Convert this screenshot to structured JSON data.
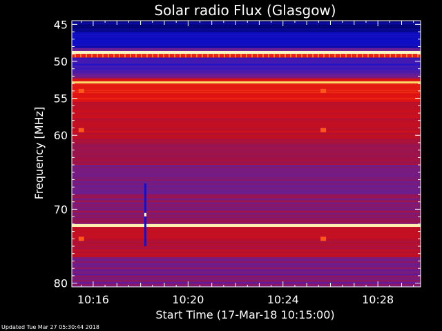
{
  "footer": {
    "updated": "Updated Tue Mar 27 05:30:44 2018"
  },
  "chart_data": {
    "type": "heatmap",
    "title": "Solar radio Flux (Glasgow)",
    "xlabel": "Start Time (17-Mar-18 10:15:00)",
    "ylabel": "Frequency [MHz]",
    "x_ticks": [
      {
        "minutes": 16,
        "label": "10:16"
      },
      {
        "minutes": 20,
        "label": "10:20"
      },
      {
        "minutes": 24,
        "label": "10:24"
      },
      {
        "minutes": 28,
        "label": "10:28"
      }
    ],
    "y_ticks": [
      45,
      50,
      55,
      60,
      70,
      80
    ],
    "xlim_minutes": [
      15.1,
      29.8
    ],
    "ylim_mhz": [
      44.5,
      80.5
    ],
    "colormap": [
      "#000060",
      "#1010d0",
      "#6020a0",
      "#b01030",
      "#e01010",
      "#ff6020",
      "#ffd050",
      "#ffffe0"
    ],
    "bands": [
      {
        "from": 44.5,
        "to": 46.0,
        "level": 0.05
      },
      {
        "from": 46.0,
        "to": 48.2,
        "level": 0.12
      },
      {
        "from": 48.2,
        "to": 48.6,
        "level": 0.3
      },
      {
        "from": 48.6,
        "to": 49.0,
        "level": 0.97
      },
      {
        "from": 49.0,
        "to": 49.5,
        "level": 0.6
      },
      {
        "from": 49.5,
        "to": 51.5,
        "level": 0.22
      },
      {
        "from": 51.5,
        "to": 52.3,
        "level": 0.3
      },
      {
        "from": 52.3,
        "to": 52.7,
        "level": 0.55
      },
      {
        "from": 52.7,
        "to": 53.0,
        "level": 0.88
      },
      {
        "from": 53.0,
        "to": 55.5,
        "level": 0.58
      },
      {
        "from": 55.5,
        "to": 60.5,
        "level": 0.48
      },
      {
        "from": 60.5,
        "to": 64.0,
        "level": 0.4
      },
      {
        "from": 64.0,
        "to": 68.0,
        "level": 0.32
      },
      {
        "from": 68.0,
        "to": 71.0,
        "level": 0.36
      },
      {
        "from": 71.0,
        "to": 72.0,
        "level": 0.38
      },
      {
        "from": 72.0,
        "to": 72.4,
        "level": 0.95
      },
      {
        "from": 72.4,
        "to": 76.5,
        "level": 0.46
      },
      {
        "from": 76.5,
        "to": 80.5,
        "level": 0.33
      }
    ],
    "burst": {
      "minutes": 18.2,
      "freq_from": 66.5,
      "freq_to": 75.0
    },
    "spots": [
      {
        "minutes": 15.5,
        "mhz": 54.0
      },
      {
        "minutes": 25.7,
        "mhz": 54.0
      },
      {
        "minutes": 15.5,
        "mhz": 59.3
      },
      {
        "minutes": 25.7,
        "mhz": 59.3
      },
      {
        "minutes": 15.5,
        "mhz": 74.0
      },
      {
        "minutes": 25.7,
        "mhz": 74.0
      }
    ]
  }
}
